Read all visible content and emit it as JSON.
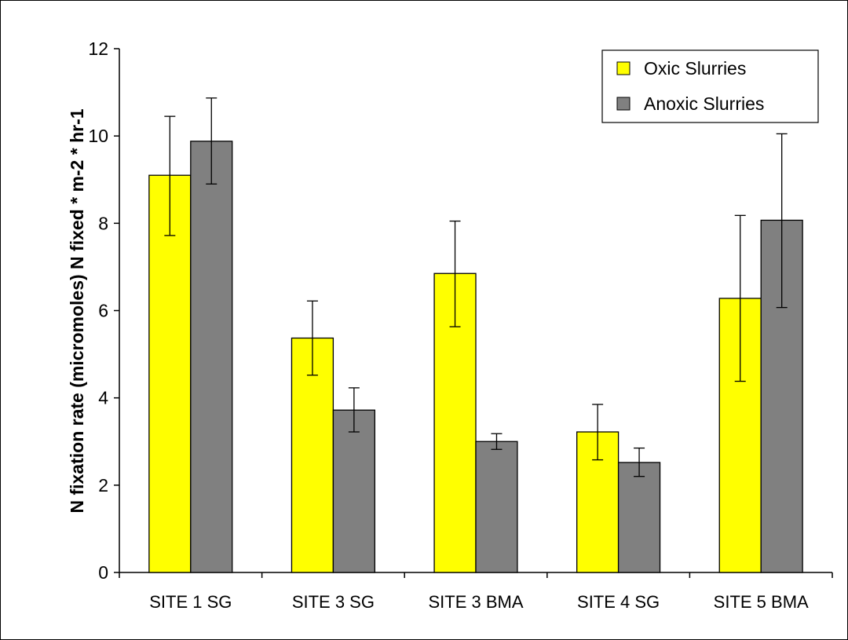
{
  "chart_data": {
    "type": "bar",
    "title": "",
    "xlabel": "",
    "ylabel": "N fixation rate (micromoles) N fixed * m-2 * hr-1",
    "ylim": [
      0,
      12
    ],
    "yticks": [
      0,
      2,
      4,
      6,
      8,
      10,
      12
    ],
    "grid": false,
    "legend_position": "top-right",
    "categories": [
      "SITE 1 SG",
      "SITE 3 SG",
      "SITE 3 BMA",
      "SITE 4 SG",
      "SITE 5 BMA"
    ],
    "series": [
      {
        "name": "Oxic Slurries",
        "color": "#ffff00",
        "values": [
          9.1,
          5.37,
          6.85,
          3.22,
          6.28
        ],
        "error_low": [
          7.72,
          4.52,
          5.63,
          2.58,
          4.38
        ],
        "error_high": [
          10.45,
          6.22,
          8.05,
          3.85,
          8.18
        ]
      },
      {
        "name": "Anoxic Slurries",
        "color": "#808080",
        "values": [
          9.88,
          3.72,
          3.0,
          2.52,
          8.07
        ],
        "error_low": [
          8.9,
          3.22,
          2.82,
          2.2,
          6.07
        ],
        "error_high": [
          10.87,
          4.23,
          3.18,
          2.85,
          10.05
        ]
      }
    ]
  }
}
